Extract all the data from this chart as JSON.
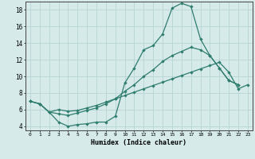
{
  "xlabel": "Humidex (Indice chaleur)",
  "xlim": [
    -0.5,
    23.5
  ],
  "ylim": [
    3.5,
    19.0
  ],
  "yticks": [
    4,
    6,
    8,
    10,
    12,
    14,
    16,
    18
  ],
  "xticks": [
    0,
    1,
    2,
    3,
    4,
    5,
    6,
    7,
    8,
    9,
    10,
    11,
    12,
    13,
    14,
    15,
    16,
    17,
    18,
    19,
    20,
    21,
    22,
    23
  ],
  "background_color": "#d6eaea",
  "grid_color": "#b8d4d4",
  "line_color": "#2e7d6e",
  "curve1_x": [
    0,
    1,
    2,
    3,
    4,
    5,
    6,
    7,
    8,
    9,
    10,
    11,
    12,
    13,
    14,
    15,
    16,
    17,
    18,
    19,
    20,
    21,
    22
  ],
  "curve1_y": [
    7.0,
    6.7,
    5.7,
    4.5,
    4.0,
    4.2,
    4.3,
    4.5,
    4.5,
    5.2,
    9.2,
    11.0,
    13.2,
    13.7,
    15.1,
    18.2,
    18.8,
    18.4,
    14.5,
    12.5,
    11.0,
    9.5,
    9.0
  ],
  "curve2_x": [
    0,
    1,
    2,
    3,
    4,
    5,
    6,
    7,
    8,
    9,
    10,
    11,
    12,
    13,
    14,
    15,
    16,
    17,
    18,
    19,
    20,
    21,
    22
  ],
  "curve2_y": [
    7.0,
    6.7,
    5.7,
    5.5,
    5.3,
    5.6,
    5.9,
    6.2,
    6.7,
    7.3,
    8.2,
    9.0,
    10.0,
    10.8,
    11.8,
    12.5,
    13.0,
    13.5,
    13.2,
    12.5,
    11.0,
    9.5,
    9.0
  ],
  "curve3_x": [
    0,
    1,
    2,
    3,
    4,
    5,
    6,
    7,
    8,
    9,
    10,
    11,
    12,
    13,
    14,
    15,
    16,
    17,
    18,
    19,
    20,
    21,
    22,
    23
  ],
  "curve3_y": [
    7.0,
    6.7,
    5.7,
    6.0,
    5.8,
    5.9,
    6.2,
    6.5,
    6.9,
    7.3,
    7.7,
    8.1,
    8.5,
    8.9,
    9.3,
    9.7,
    10.1,
    10.5,
    10.9,
    11.3,
    11.7,
    10.5,
    8.5,
    9.0
  ]
}
